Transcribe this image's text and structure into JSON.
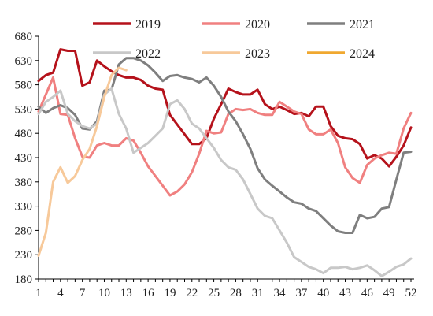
{
  "chart_data": {
    "type": "line",
    "title": "",
    "xlabel": "",
    "ylabel": "",
    "ylim": [
      180,
      680
    ],
    "yticks": [
      "680",
      "630",
      "580",
      "530",
      "480",
      "430",
      "380",
      "330",
      "280",
      "230",
      "180"
    ],
    "xlim": [
      1,
      52
    ],
    "xticks": [
      "1",
      "4",
      "7",
      "10",
      "13",
      "16",
      "19",
      "22",
      "25",
      "28",
      "31",
      "34",
      "37",
      "40",
      "43",
      "46",
      "49",
      "52"
    ],
    "grid": false,
    "legend_position": "top",
    "series": [
      {
        "name": "2019",
        "color": "#b5121b",
        "x": [
          1,
          2,
          3,
          4,
          5,
          6,
          7,
          8,
          9,
          10,
          11,
          12,
          13,
          14,
          15,
          16,
          17,
          18,
          19,
          20,
          21,
          22,
          23,
          24,
          25,
          26,
          27,
          28,
          29,
          30,
          31,
          32,
          33,
          34,
          35,
          36,
          37,
          38,
          39,
          40,
          41,
          42,
          43,
          44,
          45,
          46,
          47,
          48,
          49,
          50,
          51,
          52
        ],
        "y": [
          588,
          600,
          605,
          653,
          650,
          650,
          578,
          585,
          630,
          618,
          608,
          600,
          595,
          595,
          590,
          578,
          572,
          570,
          518,
          498,
          478,
          458,
          458,
          470,
          510,
          540,
          572,
          565,
          560,
          560,
          570,
          540,
          530,
          535,
          528,
          520,
          522,
          515,
          535,
          535,
          495,
          475,
          470,
          468,
          458,
          428,
          435,
          428,
          412,
          432,
          455,
          492
        ]
      },
      {
        "name": "2020",
        "color": "#f08080",
        "x": [
          1,
          2,
          3,
          4,
          5,
          6,
          7,
          8,
          9,
          10,
          11,
          12,
          13,
          14,
          15,
          16,
          17,
          18,
          19,
          20,
          21,
          22,
          23,
          24,
          25,
          26,
          27,
          28,
          29,
          30,
          31,
          32,
          33,
          34,
          35,
          36,
          37,
          38,
          39,
          40,
          41,
          42,
          43,
          44,
          45,
          46,
          47,
          48,
          49,
          50,
          51,
          52
        ],
        "y": [
          525,
          560,
          595,
          520,
          518,
          470,
          432,
          430,
          455,
          460,
          455,
          455,
          470,
          465,
          440,
          412,
          392,
          372,
          352,
          360,
          375,
          400,
          438,
          485,
          480,
          482,
          520,
          530,
          528,
          530,
          522,
          518,
          518,
          545,
          535,
          525,
          520,
          488,
          478,
          478,
          488,
          460,
          410,
          388,
          378,
          415,
          428,
          435,
          440,
          438,
          490,
          522
        ]
      },
      {
        "name": "2021",
        "color": "#7f7f7f",
        "x": [
          1,
          2,
          3,
          4,
          5,
          6,
          7,
          8,
          9,
          10,
          11,
          12,
          13,
          14,
          15,
          16,
          17,
          18,
          19,
          20,
          21,
          22,
          23,
          24,
          25,
          26,
          27,
          28,
          29,
          30,
          31,
          32,
          33,
          34,
          35,
          36,
          37,
          38,
          39,
          40,
          41,
          42,
          43,
          44,
          45,
          46,
          47,
          48,
          49,
          50,
          51,
          52
        ],
        "y": [
          535,
          522,
          532,
          538,
          532,
          518,
          490,
          488,
          505,
          568,
          570,
          622,
          635,
          635,
          630,
          620,
          605,
          588,
          598,
          600,
          595,
          592,
          585,
          595,
          578,
          555,
          525,
          505,
          478,
          448,
          408,
          385,
          372,
          360,
          348,
          338,
          335,
          325,
          320,
          305,
          290,
          278,
          275,
          275,
          312,
          305,
          308,
          325,
          328,
          385,
          440,
          442
        ]
      },
      {
        "name": "2022",
        "color": "#c8c8c8",
        "x": [
          1,
          2,
          3,
          4,
          5,
          6,
          7,
          8,
          9,
          10,
          11,
          12,
          13,
          14,
          15,
          16,
          17,
          18,
          19,
          20,
          21,
          22,
          23,
          24,
          25,
          26,
          27,
          28,
          29,
          30,
          31,
          32,
          33,
          34,
          35,
          36,
          37,
          38,
          39,
          40,
          41,
          42,
          43,
          44,
          45,
          46,
          47,
          48,
          49,
          50,
          51,
          52
        ],
        "y": [
          520,
          545,
          555,
          568,
          520,
          505,
          495,
          490,
          500,
          560,
          572,
          520,
          490,
          440,
          450,
          460,
          475,
          490,
          540,
          548,
          530,
          500,
          490,
          470,
          450,
          425,
          410,
          405,
          385,
          355,
          325,
          310,
          305,
          280,
          255,
          225,
          215,
          205,
          200,
          192,
          203,
          203,
          205,
          200,
          203,
          208,
          198,
          186,
          195,
          205,
          210,
          222
        ]
      },
      {
        "name": "2023",
        "color": "#f7c99a",
        "x": [
          1,
          2,
          3,
          4,
          5,
          6,
          7,
          8,
          9,
          10,
          11,
          12,
          13
        ],
        "y": [
          228,
          275,
          380,
          410,
          378,
          392,
          425,
          448,
          495,
          555,
          600,
          615,
          610
        ]
      },
      {
        "name": "2024",
        "color": "#f0a830",
        "x": [],
        "y": []
      }
    ]
  }
}
